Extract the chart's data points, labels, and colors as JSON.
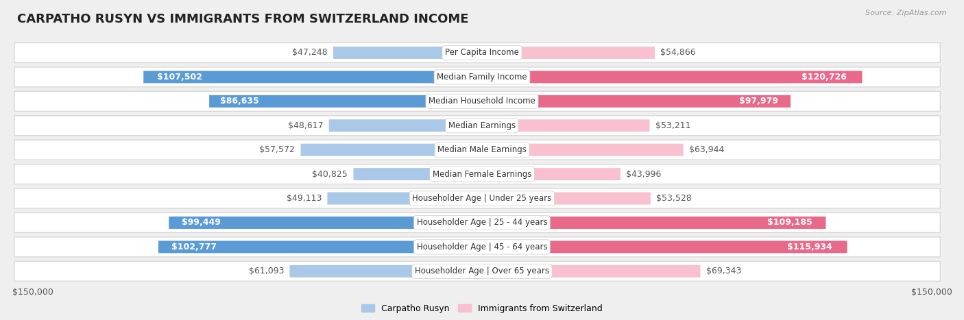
{
  "title": "CARPATHO RUSYN VS IMMIGRANTS FROM SWITZERLAND INCOME",
  "source": "Source: ZipAtlas.com",
  "categories": [
    "Per Capita Income",
    "Median Family Income",
    "Median Household Income",
    "Median Earnings",
    "Median Male Earnings",
    "Median Female Earnings",
    "Householder Age | Under 25 years",
    "Householder Age | 25 - 44 years",
    "Householder Age | 45 - 64 years",
    "Householder Age | Over 65 years"
  ],
  "left_values": [
    47248,
    107502,
    86635,
    48617,
    57572,
    40825,
    49113,
    99449,
    102777,
    61093
  ],
  "right_values": [
    54866,
    120726,
    97979,
    53211,
    63944,
    43996,
    53528,
    109185,
    115934,
    69343
  ],
  "left_labels": [
    "$47,248",
    "$107,502",
    "$86,635",
    "$48,617",
    "$57,572",
    "$40,825",
    "$49,113",
    "$99,449",
    "$102,777",
    "$61,093"
  ],
  "right_labels": [
    "$54,866",
    "$120,726",
    "$97,979",
    "$53,211",
    "$63,944",
    "$43,996",
    "$53,528",
    "$109,185",
    "$115,934",
    "$69,343"
  ],
  "left_color_light": "#aac8e8",
  "left_color_dark": "#5b9bd5",
  "right_color_light": "#f9c0d0",
  "right_color_dark": "#e8698a",
  "threshold": 0.52,
  "max_value": 150000,
  "left_legend": "Carpatho Rusyn",
  "right_legend": "Immigrants from Switzerland",
  "bg_color": "#efefef",
  "row_bg_color": "#ffffff",
  "row_border_color": "#d8d8d8",
  "title_fontsize": 13,
  "label_fontsize": 9,
  "category_fontsize": 8.5,
  "axis_label_fontsize": 9
}
